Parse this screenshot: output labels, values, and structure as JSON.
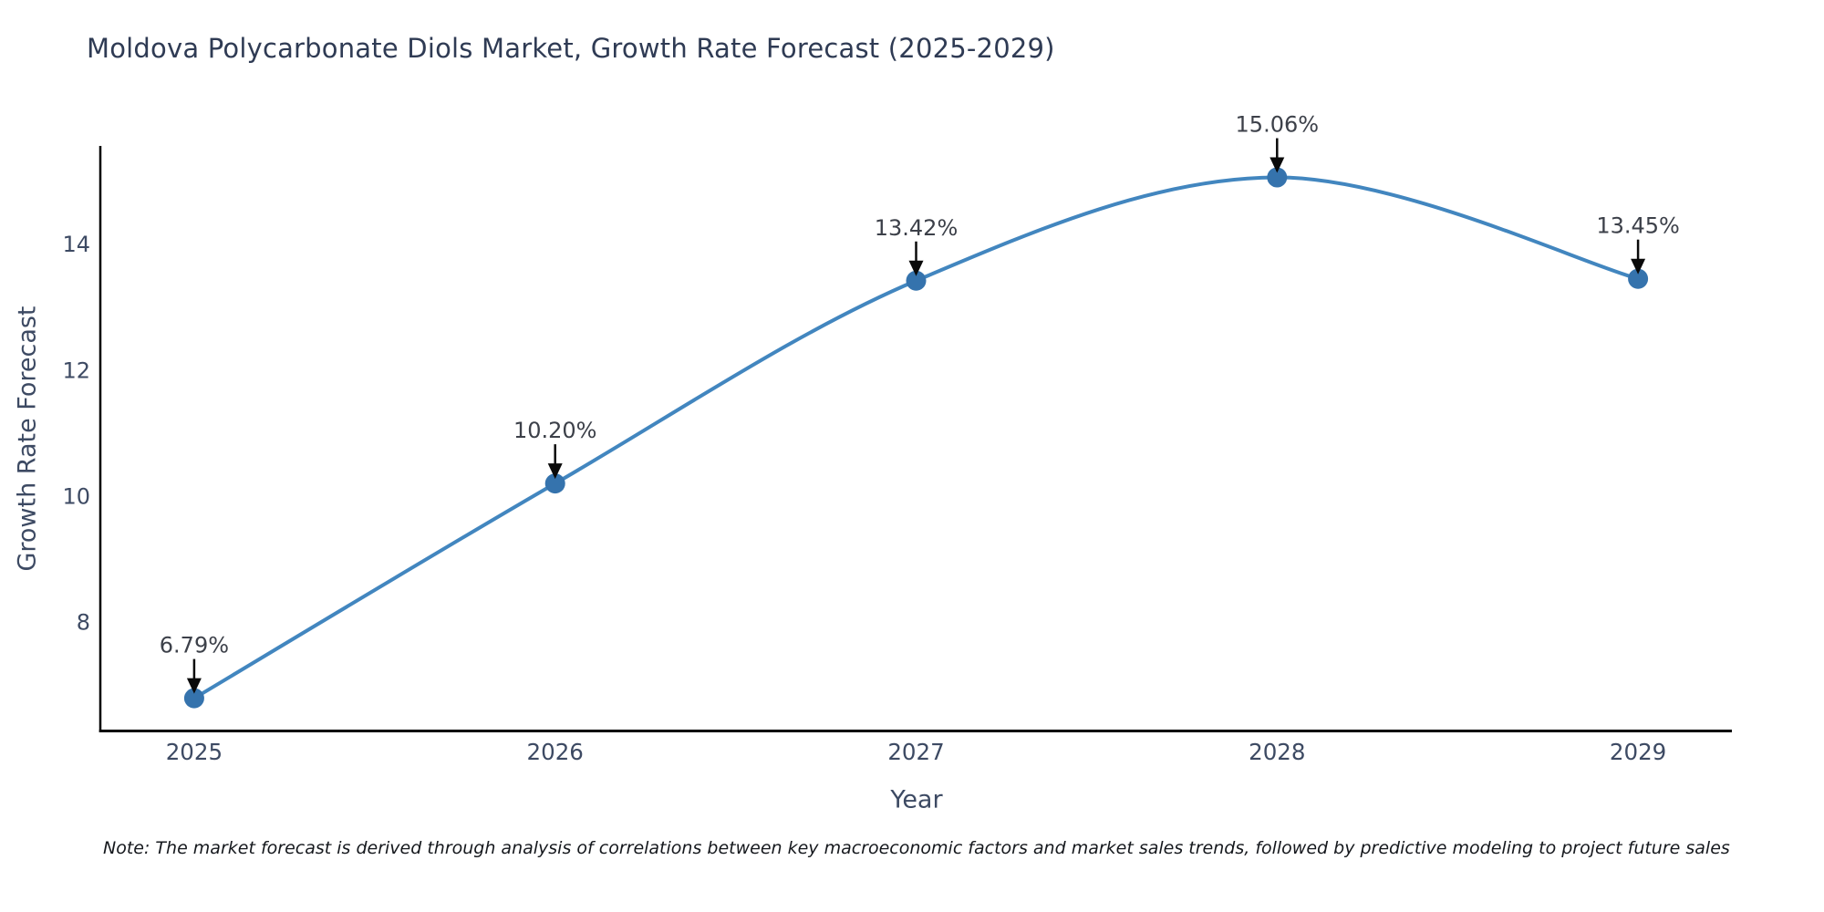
{
  "page": {
    "background": "#ffffff"
  },
  "chart_data": {
    "type": "line",
    "title": "Moldova Polycarbonate Diols Market, Growth Rate Forecast (2025-2029)",
    "xlabel": "Year",
    "ylabel": "Growth Rate Forecast",
    "x": [
      2025,
      2026,
      2027,
      2028,
      2029
    ],
    "x_tick_labels": [
      "2025",
      "2026",
      "2027",
      "2028",
      "2029"
    ],
    "y": [
      6.79,
      10.2,
      13.42,
      15.06,
      13.45
    ],
    "point_labels": [
      "6.79%",
      "10.20%",
      "13.42%",
      "15.06%",
      "13.45%"
    ],
    "y_ticks": [
      8,
      10,
      12,
      14
    ],
    "xlim": [
      2024.74,
      2029.26
    ],
    "ylim": [
      6.27,
      15.56
    ],
    "grid": false,
    "legend": "none",
    "curve": "spline",
    "annotations": "value labels with downward black arrows above each point",
    "line_color": "#4286bf",
    "marker_color": "#3573ad",
    "arrow_color": "#0a0a0a",
    "annotation_text_color": "#3c4049",
    "tick_label_color": "#3d4a63",
    "axis_line_color": "#000000"
  },
  "note": {
    "text": "Note: The market forecast is derived through analysis of correlations between key macroeconomic factors and market sales trends, followed by predictive modeling to project future sales"
  }
}
